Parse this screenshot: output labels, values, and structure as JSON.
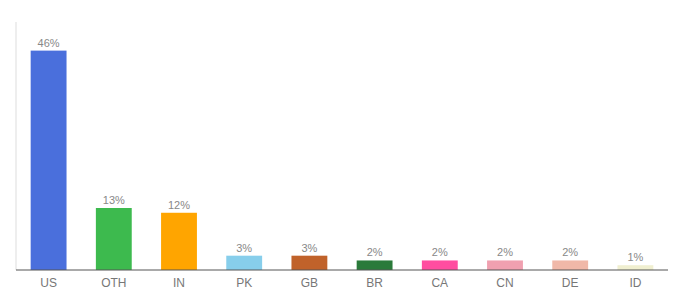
{
  "chart_data": {
    "type": "bar",
    "categories": [
      "US",
      "OTH",
      "IN",
      "PK",
      "GB",
      "BR",
      "CA",
      "CN",
      "DE",
      "ID"
    ],
    "values": [
      46,
      13,
      12,
      3,
      3,
      2,
      2,
      2,
      2,
      1
    ],
    "value_labels": [
      "46%",
      "13%",
      "12%",
      "3%",
      "3%",
      "2%",
      "2%",
      "2%",
      "2%",
      "1%"
    ],
    "colors": [
      "#4a6fdc",
      "#3dba4e",
      "#ffa500",
      "#87ceeb",
      "#c0622a",
      "#2a7a3a",
      "#ff4da0",
      "#f0a0b0",
      "#f0b8a8",
      "#f0efd0"
    ],
    "data_labels": true,
    "ylim": [
      0,
      52
    ],
    "tick_labels": "x",
    "grid": false
  }
}
